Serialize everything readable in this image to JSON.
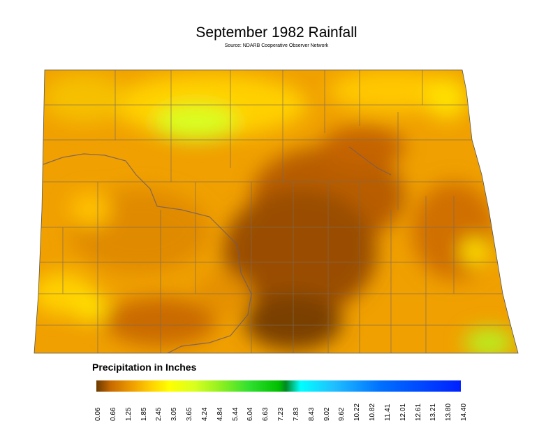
{
  "title": "September 1982 Rainfall",
  "source": "Source: NDARB Cooperative Observer Network",
  "legend": {
    "title": "Precipitation in Inches",
    "ticks": [
      "0.06",
      "0.66",
      "1.25",
      "1.85",
      "2.45",
      "3.05",
      "3.65",
      "4.24",
      "4.84",
      "5.44",
      "6.04",
      "6.63",
      "7.23",
      "7.83",
      "8.43",
      "9.02",
      "9.62",
      "10.22",
      "10.82",
      "11.41",
      "12.01",
      "12.61",
      "13.21",
      "13.80",
      "14.40"
    ],
    "colors": [
      "#6b3a00",
      "#c96a00",
      "#f0a000",
      "#ffd000",
      "#ffff00",
      "#d8ff20",
      "#90f020",
      "#30e030",
      "#00c000",
      "#008a20",
      "#00ffff",
      "#20c0ff",
      "#0070ff",
      "#0020ff"
    ]
  }
}
